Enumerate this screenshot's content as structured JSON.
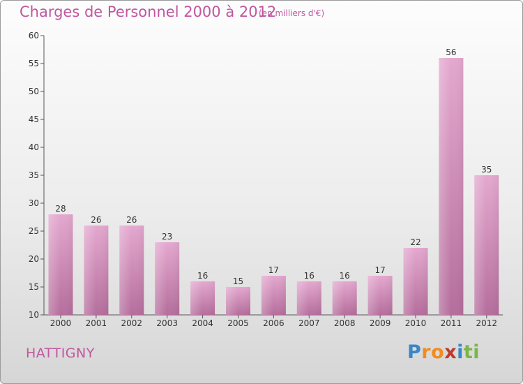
{
  "header": {
    "title": "Charges de Personnel 2000 à 2012",
    "unit": "(en milliers d'€)"
  },
  "commune": "HATTIGNY",
  "brand": {
    "letters": [
      "P",
      "r",
      "o",
      "x",
      "i",
      "t",
      "i"
    ],
    "colors": [
      "#3a86c8",
      "#f28c1e",
      "#f28c1e",
      "#c0392b",
      "#3a86c8",
      "#7ab648",
      "#7ab648"
    ]
  },
  "chart_data": {
    "type": "bar",
    "title": "Charges de Personnel 2000 à 2012",
    "categories": [
      "2000",
      "2001",
      "2002",
      "2003",
      "2004",
      "2005",
      "2006",
      "2007",
      "2008",
      "2009",
      "2010",
      "2011",
      "2012"
    ],
    "values": [
      28,
      26,
      26,
      23,
      16,
      15,
      17,
      16,
      16,
      17,
      22,
      56,
      35
    ],
    "ylim": [
      10,
      60
    ],
    "yticks": [
      10,
      15,
      20,
      25,
      30,
      35,
      40,
      45,
      50,
      55,
      60
    ],
    "grid": false,
    "legend": "none",
    "colors": {
      "bar_top": "#e4a8cf",
      "bar_bottom": "#b56e9c",
      "text_accent": "#c0579f"
    }
  }
}
